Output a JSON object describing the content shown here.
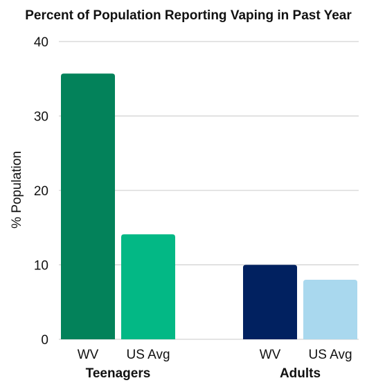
{
  "chart_data": {
    "type": "bar",
    "title": "Percent of Population Reporting Vaping in Past Year",
    "ylabel": "% Population",
    "xlabel": "",
    "ylim": [
      0,
      40
    ],
    "yticks": [
      0,
      10,
      20,
      30,
      40
    ],
    "grid": true,
    "groups": [
      {
        "label": "Teenagers",
        "bars": [
          {
            "label": "WV",
            "value": 35.7,
            "color": "#03825a"
          },
          {
            "label": "US Avg",
            "value": 14.1,
            "color": "#03b885"
          }
        ]
      },
      {
        "label": "Adults",
        "bars": [
          {
            "label": "WV",
            "value": 10.0,
            "color": "#012160"
          },
          {
            "label": "US Avg",
            "value": 8.0,
            "color": "#a9d8ee"
          }
        ]
      }
    ]
  }
}
